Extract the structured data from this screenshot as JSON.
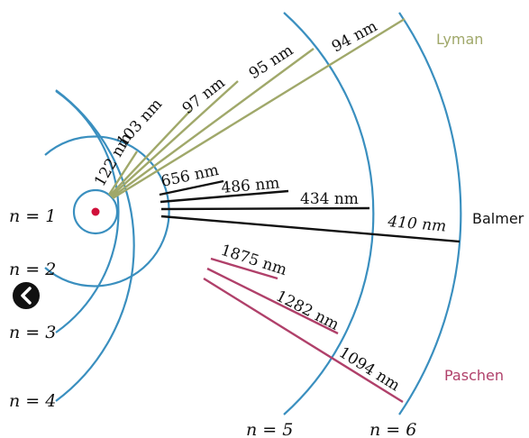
{
  "levels": {
    "n1": "n = 1",
    "n2": "n = 2",
    "n3": "n = 3",
    "n4": "n = 4",
    "n5": "n = 5",
    "n6": "n = 6"
  },
  "series": {
    "lyman": {
      "name": "Lyman",
      "color": "#a0a86a"
    },
    "balmer": {
      "name": "Balmer",
      "color": "#111111"
    },
    "paschen": {
      "name": "Paschen",
      "color": "#b0406a"
    }
  },
  "wavelengths": {
    "lyman": [
      "122 nm",
      "103 nm",
      "97 nm",
      "95 nm",
      "94 nm"
    ],
    "balmer": [
      "656 nm",
      "486 nm",
      "434 nm",
      "410 nm"
    ],
    "paschen": [
      "1875 nm",
      "1282 nm",
      "1094 nm"
    ]
  },
  "colors": {
    "orbit": "#3a8fbf",
    "nucleus": "#d0103a"
  },
  "nav": {
    "icon": "chevron-left-icon"
  }
}
